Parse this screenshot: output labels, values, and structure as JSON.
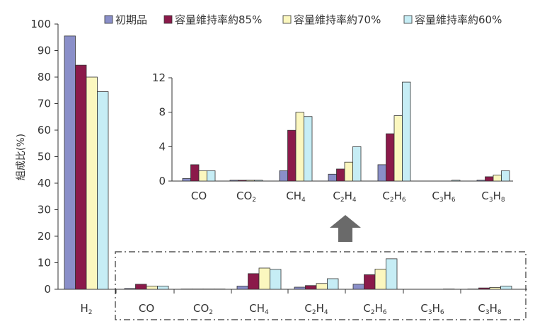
{
  "chart_data": [
    {
      "type": "bar",
      "ylabel": "組成比(%)",
      "ylim": [
        0,
        100
      ],
      "yticks": [
        "0",
        "10",
        "20",
        "30",
        "40",
        "50",
        "60",
        "70",
        "80",
        "90",
        "100"
      ],
      "categories": [
        "H2",
        "CO",
        "CO2",
        "CH4",
        "C2H4",
        "C2H6",
        "C3H6",
        "C3H8"
      ],
      "category_labels": [
        {
          "base": "H",
          "sub": "2",
          "tail": ""
        },
        {
          "base": "CO",
          "sub": "",
          "tail": ""
        },
        {
          "base": "CO",
          "sub": "2",
          "tail": ""
        },
        {
          "base": "CH",
          "sub": "4",
          "tail": ""
        },
        {
          "base": "C",
          "sub": "2",
          "tail": "H",
          "sub2": "4"
        },
        {
          "base": "C",
          "sub": "2",
          "tail": "H",
          "sub2": "6"
        },
        {
          "base": "C",
          "sub": "3",
          "tail": "H",
          "sub2": "6"
        },
        {
          "base": "C",
          "sub": "3",
          "tail": "H",
          "sub2": "8"
        }
      ],
      "series": [
        {
          "name": "初期品",
          "color": "#8a8fc9",
          "values": [
            95.5,
            0.3,
            0.1,
            1.2,
            0.8,
            1.9,
            0.0,
            0.1
          ]
        },
        {
          "name": "容量維持率約85%",
          "color": "#8b1a4a",
          "values": [
            84.5,
            1.9,
            0.1,
            5.9,
            1.4,
            5.5,
            0.0,
            0.5
          ]
        },
        {
          "name": "容量維持率約70%",
          "color": "#fbf7bf",
          "values": [
            80.0,
            1.2,
            0.1,
            8.0,
            2.2,
            7.6,
            0.0,
            0.7
          ]
        },
        {
          "name": "容量維持率約60%",
          "color": "#c6edf5",
          "values": [
            74.5,
            1.2,
            0.1,
            7.5,
            4.0,
            11.5,
            0.1,
            1.2
          ]
        }
      ],
      "legend_position": "top",
      "grid": false
    },
    {
      "type": "bar",
      "inset_of": "main",
      "ylim": [
        0,
        12
      ],
      "yticks": [
        "0",
        "4",
        "8",
        "12"
      ],
      "categories": [
        "CO",
        "CO2",
        "CH4",
        "C2H4",
        "C2H6",
        "C3H6",
        "C3H8"
      ]
    }
  ]
}
